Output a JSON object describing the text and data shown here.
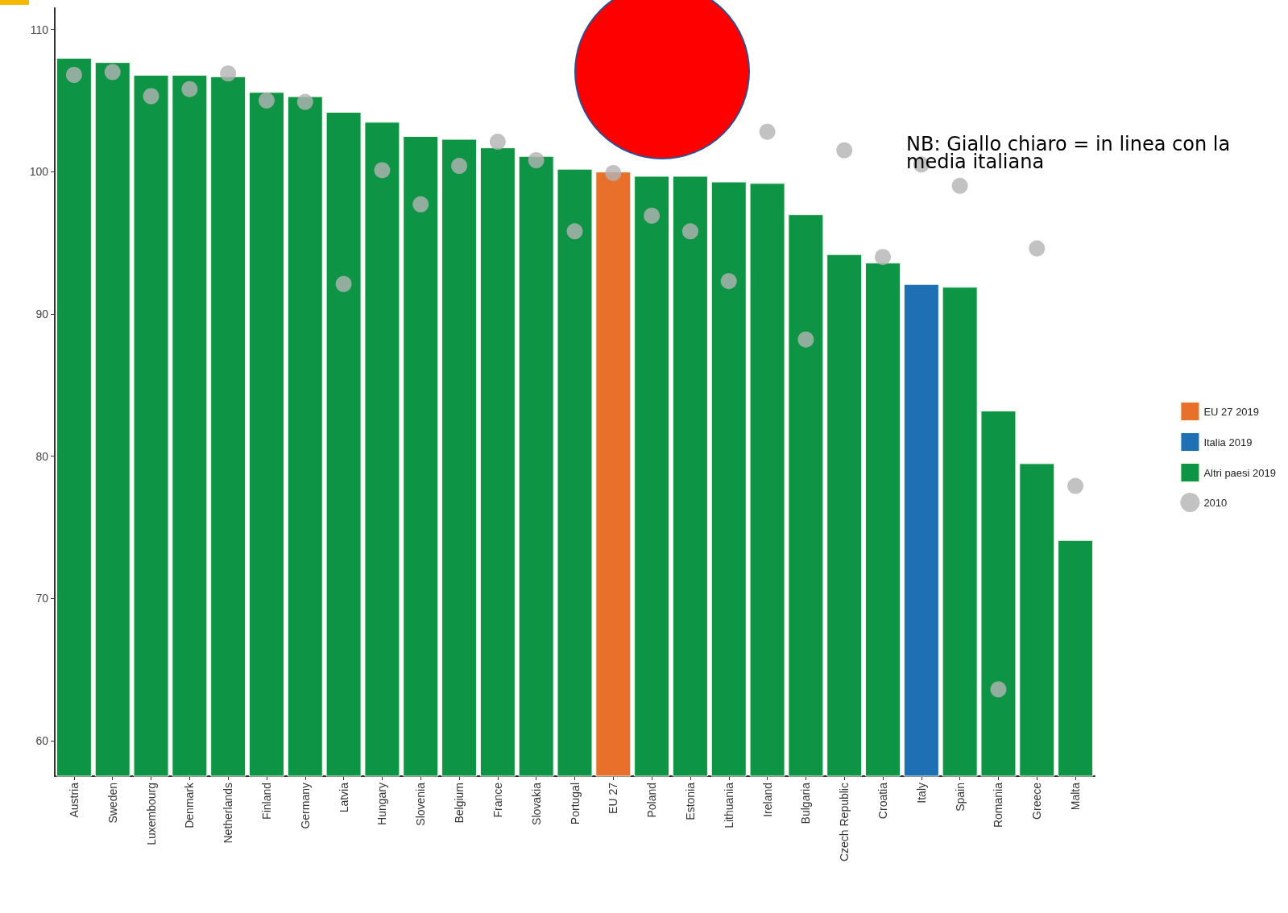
{
  "chart_data": {
    "type": "bar",
    "categories": [
      "Austria",
      "Sweden",
      "Luxembourg",
      "Denmark",
      "Netherlands",
      "Finland",
      "Germany",
      "Latvia",
      "Hungary",
      "Slovenia",
      "Belgium",
      "France",
      "Slovakia",
      "Portugal",
      "EU 27",
      "Poland",
      "Estonia",
      "Lithuania",
      "Ireland",
      "Bulgaria",
      "Czech Republic",
      "Croatia",
      "Italy",
      "Spain",
      "Romania",
      "Greece",
      "Malta"
    ],
    "series": [
      {
        "name": "EU 27 2019",
        "color": "#e8702a",
        "values": [
          null,
          null,
          null,
          null,
          null,
          null,
          null,
          null,
          null,
          null,
          null,
          null,
          null,
          null,
          100.0,
          null,
          null,
          null,
          null,
          null,
          null,
          null,
          null,
          null,
          null,
          null,
          null
        ]
      },
      {
        "name": "Italia 2019",
        "color": "#1f6fb5",
        "values": [
          null,
          null,
          null,
          null,
          null,
          null,
          null,
          null,
          null,
          null,
          null,
          null,
          null,
          null,
          null,
          null,
          null,
          null,
          null,
          null,
          null,
          null,
          92.1,
          null,
          null,
          null,
          null
        ]
      },
      {
        "name": "Altri paesi 2019",
        "color": "#0e9445",
        "values": [
          108.0,
          107.7,
          106.8,
          106.8,
          106.7,
          105.6,
          105.3,
          104.2,
          103.5,
          102.5,
          102.3,
          101.7,
          101.1,
          100.2,
          null,
          99.7,
          99.7,
          99.3,
          99.2,
          97.0,
          94.2,
          93.6,
          null,
          91.9,
          83.2,
          79.5,
          74.1
        ]
      },
      {
        "name": "2010",
        "type": "scatter",
        "color": "#b3b3b3",
        "marker": "circle",
        "values": [
          106.8,
          107.0,
          105.3,
          105.8,
          106.9,
          105.0,
          104.9,
          92.1,
          100.1,
          97.7,
          100.4,
          102.1,
          100.8,
          95.8,
          99.9,
          96.9,
          95.8,
          92.3,
          102.8,
          88.2,
          101.5,
          94.0,
          100.5,
          99.0,
          63.6,
          94.6,
          77.9
        ]
      }
    ],
    "ylim": [
      57.5,
      111.5
    ],
    "yticks": [
      60,
      70,
      80,
      90,
      100,
      110
    ],
    "grid": false,
    "legend": "right",
    "annotations": [
      "NB: Giallo chiaro = in linea con la media italiana"
    ]
  }
}
